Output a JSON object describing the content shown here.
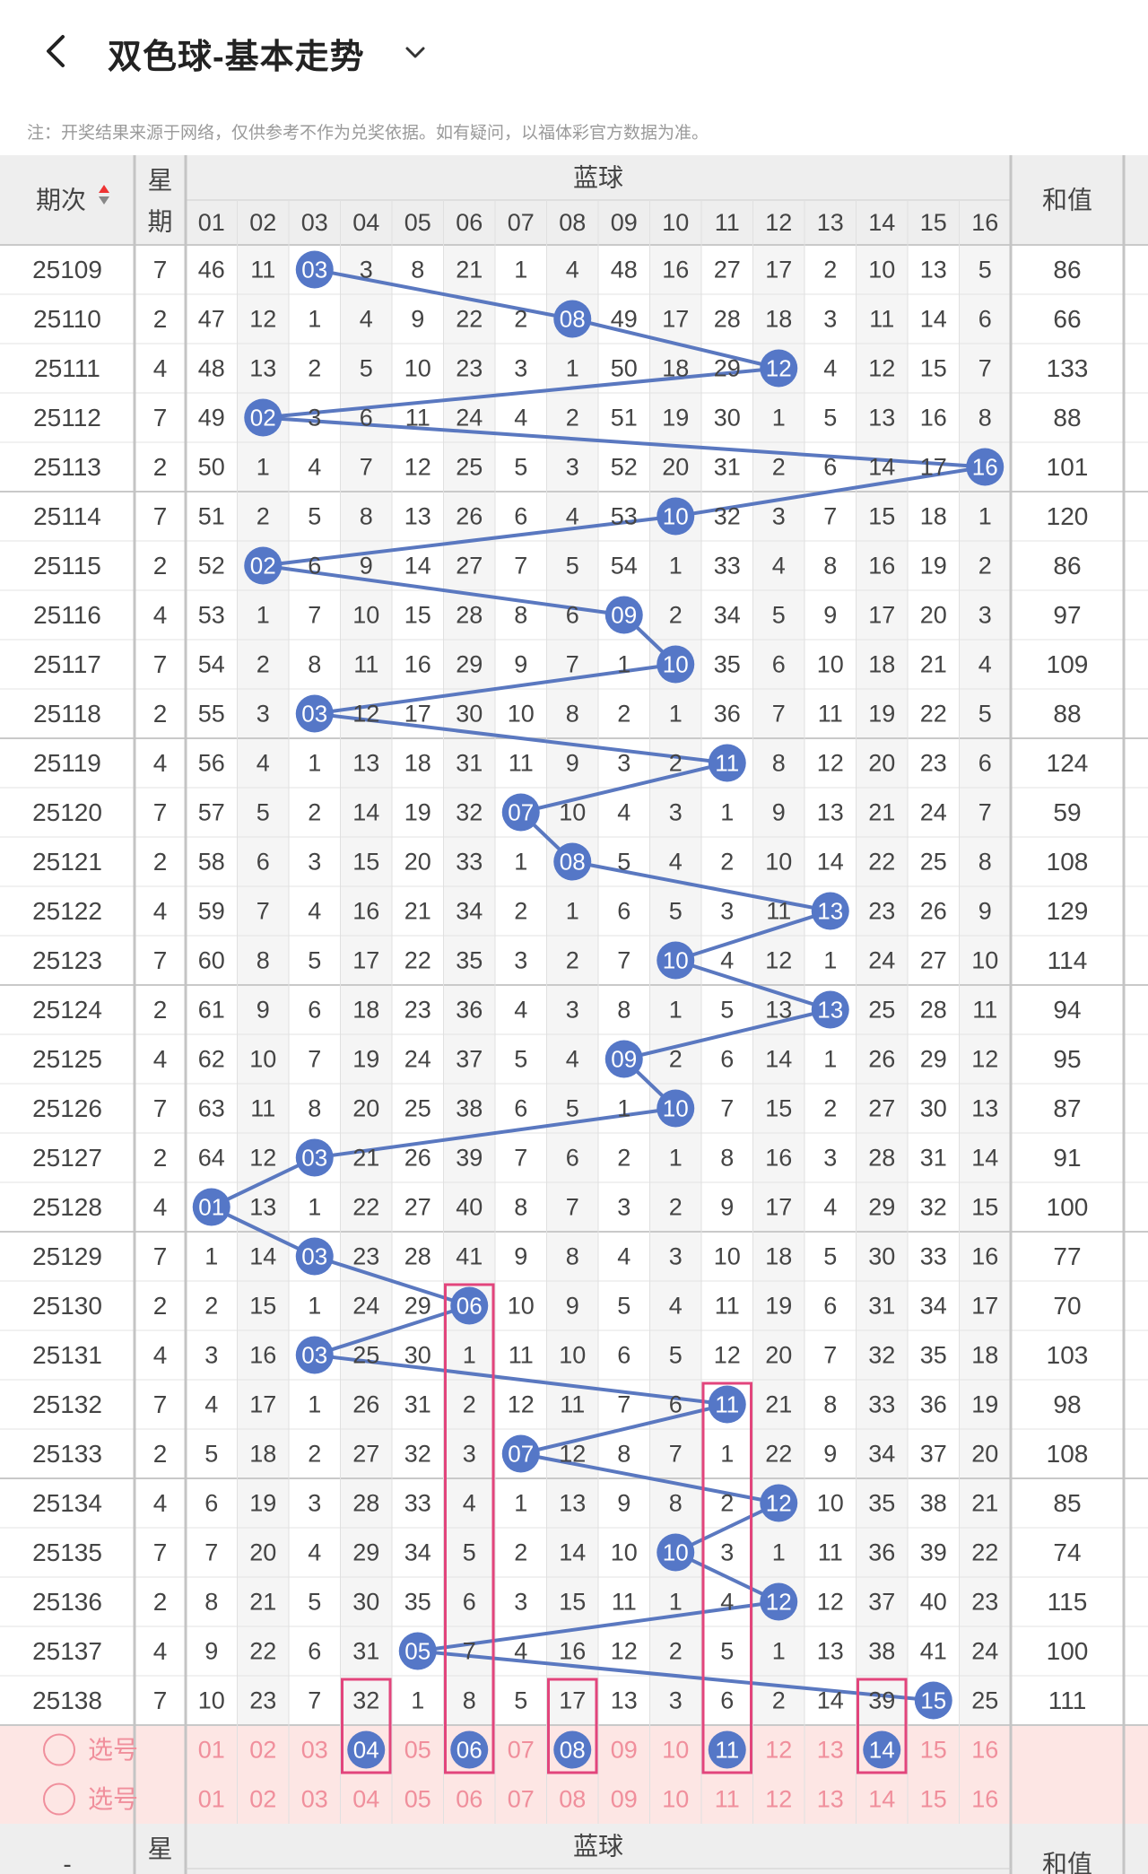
{
  "header": {
    "title": "双色球-基本走势",
    "notice": "注：开奖结果来源于网络，仅供参考不作为兑奖依据。如有疑问，以福体彩官方数据为准。"
  },
  "table": {
    "col_period": "期次",
    "col_week": "星期",
    "group_label": "蓝球",
    "col_sum": "和值",
    "numbers": [
      "01",
      "02",
      "03",
      "04",
      "05",
      "06",
      "07",
      "08",
      "09",
      "10",
      "11",
      "12",
      "13",
      "14",
      "15",
      "16"
    ],
    "rows": [
      {
        "period": "25109",
        "week": "7",
        "ball": "03",
        "sum": "86",
        "cells": [
          "46",
          "11",
          "03",
          "3",
          "8",
          "21",
          "1",
          "4",
          "48",
          "16",
          "27",
          "17",
          "2",
          "10",
          "13",
          "5"
        ]
      },
      {
        "period": "25110",
        "week": "2",
        "ball": "08",
        "sum": "66",
        "cells": [
          "47",
          "12",
          "1",
          "4",
          "9",
          "22",
          "2",
          "08",
          "49",
          "17",
          "28",
          "18",
          "3",
          "11",
          "14",
          "6"
        ]
      },
      {
        "period": "25111",
        "week": "4",
        "ball": "12",
        "sum": "133",
        "cells": [
          "48",
          "13",
          "2",
          "5",
          "10",
          "23",
          "3",
          "1",
          "50",
          "18",
          "29",
          "12",
          "4",
          "12",
          "15",
          "7"
        ]
      },
      {
        "period": "25112",
        "week": "7",
        "ball": "02",
        "sum": "88",
        "cells": [
          "49",
          "02",
          "3",
          "6",
          "11",
          "24",
          "4",
          "2",
          "51",
          "19",
          "30",
          "1",
          "5",
          "13",
          "16",
          "8"
        ]
      },
      {
        "period": "25113",
        "week": "2",
        "ball": "16",
        "sum": "101",
        "cells": [
          "50",
          "1",
          "4",
          "7",
          "12",
          "25",
          "5",
          "3",
          "52",
          "20",
          "31",
          "2",
          "6",
          "14",
          "17",
          "16"
        ]
      },
      {
        "period": "25114",
        "week": "7",
        "ball": "10",
        "sum": "120",
        "cells": [
          "51",
          "2",
          "5",
          "8",
          "13",
          "26",
          "6",
          "4",
          "53",
          "10",
          "32",
          "3",
          "7",
          "15",
          "18",
          "1"
        ]
      },
      {
        "period": "25115",
        "week": "2",
        "ball": "02",
        "sum": "86",
        "cells": [
          "52",
          "02",
          "6",
          "9",
          "14",
          "27",
          "7",
          "5",
          "54",
          "1",
          "33",
          "4",
          "8",
          "16",
          "19",
          "2"
        ]
      },
      {
        "period": "25116",
        "week": "4",
        "ball": "09",
        "sum": "97",
        "cells": [
          "53",
          "1",
          "7",
          "10",
          "15",
          "28",
          "8",
          "6",
          "09",
          "2",
          "34",
          "5",
          "9",
          "17",
          "20",
          "3"
        ]
      },
      {
        "period": "25117",
        "week": "7",
        "ball": "10",
        "sum": "109",
        "cells": [
          "54",
          "2",
          "8",
          "11",
          "16",
          "29",
          "9",
          "7",
          "1",
          "10",
          "35",
          "6",
          "10",
          "18",
          "21",
          "4"
        ]
      },
      {
        "period": "25118",
        "week": "2",
        "ball": "03",
        "sum": "88",
        "cells": [
          "55",
          "3",
          "03",
          "12",
          "17",
          "30",
          "10",
          "8",
          "2",
          "1",
          "36",
          "7",
          "11",
          "19",
          "22",
          "5"
        ]
      },
      {
        "period": "25119",
        "week": "4",
        "ball": "11",
        "sum": "124",
        "cells": [
          "56",
          "4",
          "1",
          "13",
          "18",
          "31",
          "11",
          "9",
          "3",
          "2",
          "11",
          "8",
          "12",
          "20",
          "23",
          "6"
        ]
      },
      {
        "period": "25120",
        "week": "7",
        "ball": "07",
        "sum": "59",
        "cells": [
          "57",
          "5",
          "2",
          "14",
          "19",
          "32",
          "07",
          "10",
          "4",
          "3",
          "1",
          "9",
          "13",
          "21",
          "24",
          "7"
        ]
      },
      {
        "period": "25121",
        "week": "2",
        "ball": "08",
        "sum": "108",
        "cells": [
          "58",
          "6",
          "3",
          "15",
          "20",
          "33",
          "1",
          "08",
          "5",
          "4",
          "2",
          "10",
          "14",
          "22",
          "25",
          "8"
        ]
      },
      {
        "period": "25122",
        "week": "4",
        "ball": "13",
        "sum": "129",
        "cells": [
          "59",
          "7",
          "4",
          "16",
          "21",
          "34",
          "2",
          "1",
          "6",
          "5",
          "3",
          "11",
          "13",
          "23",
          "26",
          "9"
        ]
      },
      {
        "period": "25123",
        "week": "7",
        "ball": "10",
        "sum": "114",
        "cells": [
          "60",
          "8",
          "5",
          "17",
          "22",
          "35",
          "3",
          "2",
          "7",
          "10",
          "4",
          "12",
          "1",
          "24",
          "27",
          "10"
        ]
      },
      {
        "period": "25124",
        "week": "2",
        "ball": "13",
        "sum": "94",
        "cells": [
          "61",
          "9",
          "6",
          "18",
          "23",
          "36",
          "4",
          "3",
          "8",
          "1",
          "5",
          "13",
          "13",
          "25",
          "28",
          "11"
        ]
      },
      {
        "period": "25125",
        "week": "4",
        "ball": "09",
        "sum": "95",
        "cells": [
          "62",
          "10",
          "7",
          "19",
          "24",
          "37",
          "5",
          "4",
          "09",
          "2",
          "6",
          "14",
          "1",
          "26",
          "29",
          "12"
        ]
      },
      {
        "period": "25126",
        "week": "7",
        "ball": "10",
        "sum": "87",
        "cells": [
          "63",
          "11",
          "8",
          "20",
          "25",
          "38",
          "6",
          "5",
          "1",
          "10",
          "7",
          "15",
          "2",
          "27",
          "30",
          "13"
        ]
      },
      {
        "period": "25127",
        "week": "2",
        "ball": "03",
        "sum": "91",
        "cells": [
          "64",
          "12",
          "03",
          "21",
          "26",
          "39",
          "7",
          "6",
          "2",
          "1",
          "8",
          "16",
          "3",
          "28",
          "31",
          "14"
        ]
      },
      {
        "period": "25128",
        "week": "4",
        "ball": "01",
        "sum": "100",
        "cells": [
          "01",
          "13",
          "1",
          "22",
          "27",
          "40",
          "8",
          "7",
          "3",
          "2",
          "9",
          "17",
          "4",
          "29",
          "32",
          "15"
        ]
      },
      {
        "period": "25129",
        "week": "7",
        "ball": "03",
        "sum": "77",
        "cells": [
          "1",
          "14",
          "03",
          "23",
          "28",
          "41",
          "9",
          "8",
          "4",
          "3",
          "10",
          "18",
          "5",
          "30",
          "33",
          "16"
        ]
      },
      {
        "period": "25130",
        "week": "2",
        "ball": "06",
        "sum": "70",
        "cells": [
          "2",
          "15",
          "1",
          "24",
          "29",
          "06",
          "10",
          "9",
          "5",
          "4",
          "11",
          "19",
          "6",
          "31",
          "34",
          "17"
        ]
      },
      {
        "period": "25131",
        "week": "4",
        "ball": "03",
        "sum": "103",
        "cells": [
          "3",
          "16",
          "03",
          "25",
          "30",
          "1",
          "11",
          "10",
          "6",
          "5",
          "12",
          "20",
          "7",
          "32",
          "35",
          "18"
        ]
      },
      {
        "period": "25132",
        "week": "7",
        "ball": "11",
        "sum": "98",
        "cells": [
          "4",
          "17",
          "1",
          "26",
          "31",
          "2",
          "12",
          "11",
          "7",
          "6",
          "11",
          "21",
          "8",
          "33",
          "36",
          "19"
        ]
      },
      {
        "period": "25133",
        "week": "2",
        "ball": "07",
        "sum": "108",
        "cells": [
          "5",
          "18",
          "2",
          "27",
          "32",
          "3",
          "07",
          "12",
          "8",
          "7",
          "1",
          "22",
          "9",
          "34",
          "37",
          "20"
        ]
      },
      {
        "period": "25134",
        "week": "4",
        "ball": "12",
        "sum": "85",
        "cells": [
          "6",
          "19",
          "3",
          "28",
          "33",
          "4",
          "1",
          "13",
          "9",
          "8",
          "2",
          "12",
          "10",
          "35",
          "38",
          "21"
        ]
      },
      {
        "period": "25135",
        "week": "7",
        "ball": "10",
        "sum": "74",
        "cells": [
          "7",
          "20",
          "4",
          "29",
          "34",
          "5",
          "2",
          "14",
          "10",
          "10",
          "3",
          "1",
          "11",
          "36",
          "39",
          "22"
        ]
      },
      {
        "period": "25136",
        "week": "2",
        "ball": "12",
        "sum": "115",
        "cells": [
          "8",
          "21",
          "5",
          "30",
          "35",
          "6",
          "3",
          "15",
          "11",
          "1",
          "4",
          "12",
          "12",
          "37",
          "40",
          "23"
        ]
      },
      {
        "period": "25137",
        "week": "4",
        "ball": "05",
        "sum": "100",
        "cells": [
          "9",
          "22",
          "6",
          "31",
          "05",
          "7",
          "4",
          "16",
          "12",
          "2",
          "5",
          "1",
          "13",
          "38",
          "41",
          "24"
        ]
      },
      {
        "period": "25138",
        "week": "7",
        "ball": "15",
        "sum": "111",
        "cells": [
          "10",
          "23",
          "7",
          "32",
          "1",
          "8",
          "5",
          "17",
          "13",
          "3",
          "6",
          "2",
          "14",
          "39",
          "15",
          "25"
        ]
      }
    ],
    "pick_label": "选号",
    "pick_rows": [
      {
        "label": "选号",
        "selected": [
          "04",
          "06",
          "08",
          "11",
          "14"
        ]
      },
      {
        "label": "选号",
        "selected": []
      }
    ],
    "highlight_columns": [
      "04",
      "06",
      "08",
      "11",
      "14"
    ]
  },
  "colors": {
    "ball": "#5577c7",
    "line": "#5a78c0",
    "pink_text": "#f08f9c",
    "pick_bg": "#fde6e4",
    "highlight_box": "#e2457c",
    "header_bg": "#eeeeee",
    "alt_col_bg": "#f5f5f5"
  }
}
